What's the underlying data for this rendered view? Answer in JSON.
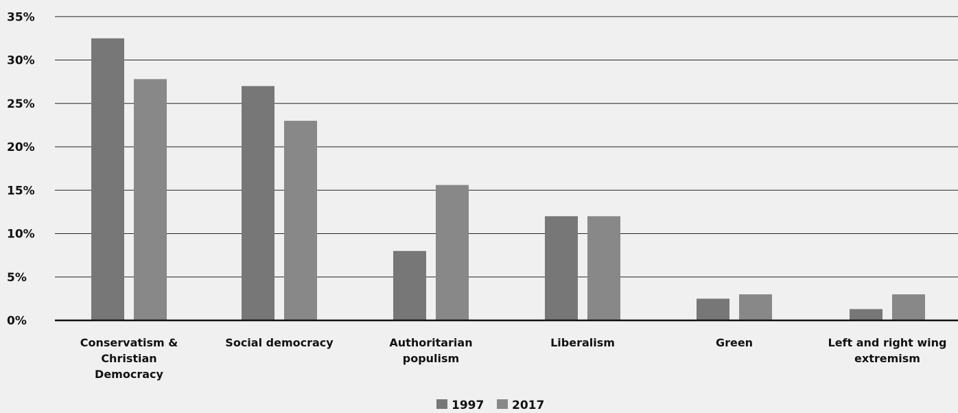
{
  "colors": {
    "background": "#f0f0f0",
    "s1997": "#777777",
    "s2017": "#888888",
    "grid": "#222222"
  },
  "chart_data": {
    "type": "bar",
    "title": "",
    "xlabel": "",
    "ylabel": "",
    "ylim": [
      0,
      35
    ],
    "yticks": [
      "0%",
      "5%",
      "10%",
      "15%",
      "20%",
      "25%",
      "30%",
      "35%"
    ],
    "grid": true,
    "legend_position": "bottom-center",
    "categories": [
      "Conservatism & Christian Democracy",
      "Social democracy",
      "Authoritarian populism",
      "Liberalism",
      "Green",
      "Left and right wing extremism"
    ],
    "category_lines": [
      [
        "Conservatism &",
        "Christian",
        "Democracy"
      ],
      [
        "Social democracy"
      ],
      [
        "Authoritarian",
        "populism"
      ],
      [
        "Liberalism"
      ],
      [
        "Green"
      ],
      [
        "Left and right wing",
        "extremism"
      ]
    ],
    "series": [
      {
        "name": "1997",
        "values": [
          32.5,
          27.0,
          8.0,
          12.0,
          2.5,
          1.3
        ]
      },
      {
        "name": "2017",
        "values": [
          27.8,
          23.0,
          15.6,
          12.0,
          3.0,
          3.0
        ]
      }
    ]
  }
}
